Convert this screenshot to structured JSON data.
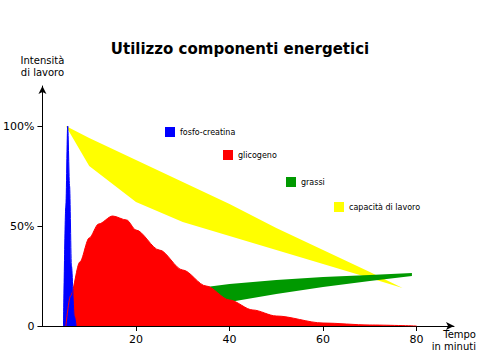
{
  "chart_data": {
    "type": "area",
    "title": "Utilizzo componenti energetici",
    "x_label": "Tempo\nin minuti",
    "y_label": "Intensità\ndi lavoro",
    "xlim": [
      0,
      88
    ],
    "xticks": [
      20,
      40,
      60,
      80
    ],
    "ylim": [
      0,
      120
    ],
    "yticks": [
      0,
      {
        "value": 50,
        "label": "50%"
      },
      {
        "value": 100,
        "label": "100%"
      }
    ],
    "grid": false,
    "series": [
      {
        "name": "capacità di lavoro",
        "color": "#ffff00",
        "x": [
          5,
          10,
          20,
          30,
          40,
          50,
          60,
          70,
          77
        ],
        "values": [
          100,
          94,
          83,
          72,
          61,
          49,
          38,
          27,
          19
        ],
        "lower": [
          100,
          80,
          62,
          52,
          45,
          38,
          31,
          24,
          19
        ]
      },
      {
        "name": "grassi",
        "color": "#009900",
        "x": [
          20,
          21,
          23,
          26,
          30,
          40,
          50,
          60,
          70,
          79
        ],
        "values": [
          0,
          6,
          11,
          15,
          18,
          21,
          23,
          24.5,
          25.5,
          26.5
        ],
        "lower": [
          0,
          0.5,
          1.5,
          3,
          7,
          12,
          16,
          19.5,
          22.5,
          25
        ]
      },
      {
        "name": "glicogeno",
        "color": "#ff0000",
        "x": [
          5,
          6,
          8,
          10,
          12,
          15,
          18,
          20,
          25,
          30,
          35,
          40,
          45,
          50,
          60,
          70,
          80
        ],
        "values": [
          0,
          15,
          32,
          44,
          51,
          55,
          53,
          48,
          38,
          28,
          20,
          13,
          8,
          5,
          1.5,
          0.5,
          0
        ]
      },
      {
        "name": "fosfo-creatina",
        "color": "#0000ff",
        "x": [
          4.5,
          5,
          5.4,
          5.8,
          6.2,
          6.8,
          7.2
        ],
        "values": [
          0,
          60,
          100,
          70,
          30,
          5,
          0
        ]
      }
    ]
  }
}
